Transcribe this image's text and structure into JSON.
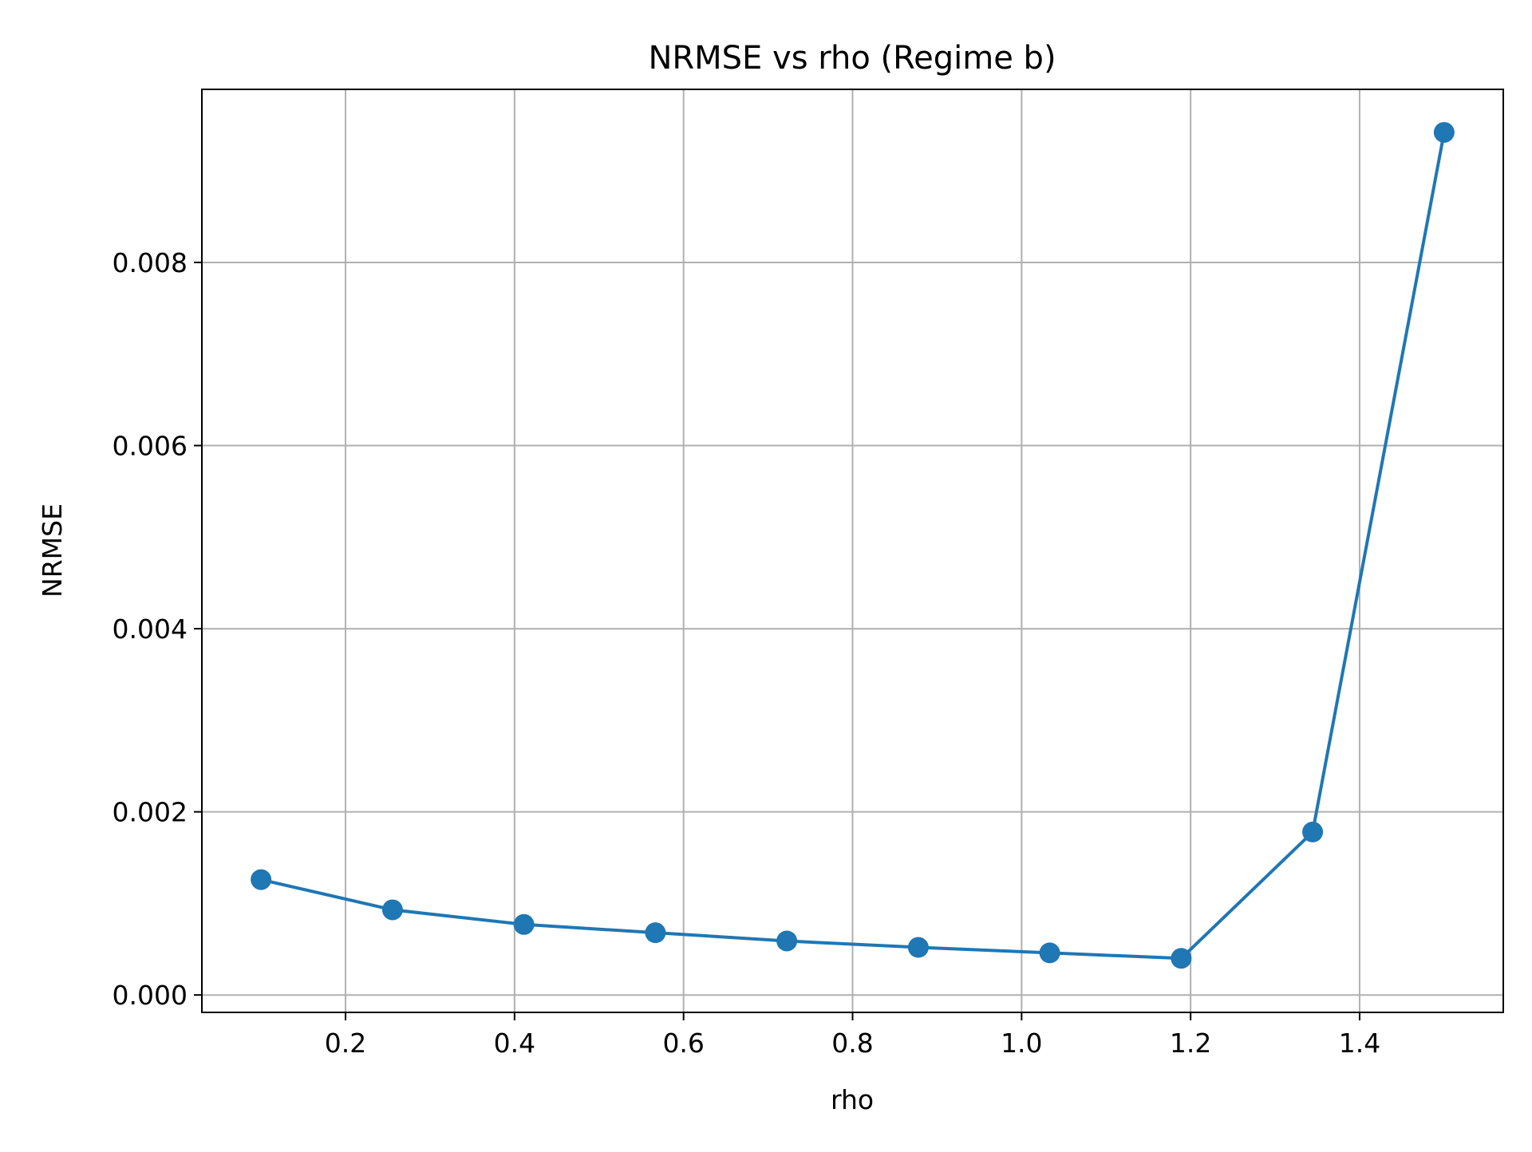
{
  "chart_data": {
    "type": "line",
    "title": "NRMSE vs rho (Regime b)",
    "xlabel": "rho",
    "ylabel": "NRMSE",
    "x_ticks": [
      0.2,
      0.4,
      0.6,
      0.8,
      1.0,
      1.2,
      1.4
    ],
    "x_tick_labels": [
      "0.2",
      "0.4",
      "0.6",
      "0.8",
      "1.0",
      "1.2",
      "1.4"
    ],
    "y_ticks": [
      0.0,
      0.002,
      0.004,
      0.006,
      0.008
    ],
    "y_tick_labels": [
      "0.000",
      "0.002",
      "0.004",
      "0.006",
      "0.008"
    ],
    "xlim": [
      0.03,
      1.57
    ],
    "ylim": [
      -0.00019,
      0.00989
    ],
    "grid": true,
    "legend": false,
    "series": [
      {
        "color": "#1f77b4",
        "marker": "circle",
        "x": [
          0.1,
          0.2556,
          0.4111,
          0.5667,
          0.7222,
          0.8778,
          1.0333,
          1.1889,
          1.3444,
          1.5
        ],
        "y": [
          0.00126,
          0.00093,
          0.00077,
          0.00068,
          0.00059,
          0.00052,
          0.00046,
          0.0004,
          0.00178,
          0.00942
        ]
      }
    ]
  }
}
